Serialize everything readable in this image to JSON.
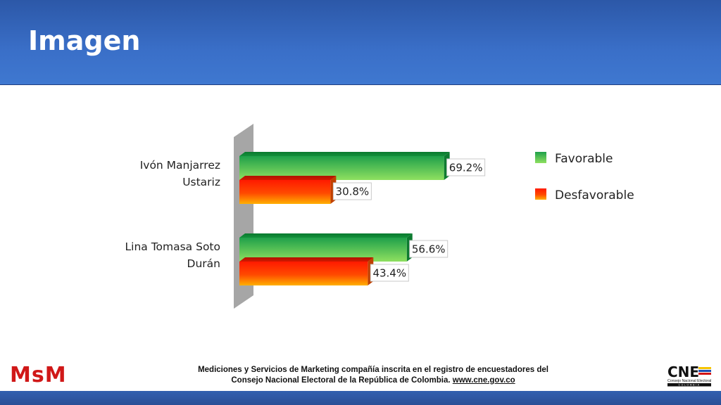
{
  "header": {
    "title": "Imagen"
  },
  "chart_data": {
    "type": "bar",
    "orientation": "horizontal",
    "categories": [
      "Ivón Manjarrez Ustariz",
      "Lina Tomasa Soto Durán"
    ],
    "category_lines": [
      [
        "Ivón Manjarrez",
        "Ustariz"
      ],
      [
        "Lina Tomasa Soto",
        "Durán"
      ]
    ],
    "series": [
      {
        "name": "Favorable",
        "values": [
          69.2,
          56.6
        ],
        "labels": [
          "69.2%",
          "56.6%"
        ],
        "color": "#4cc24c"
      },
      {
        "name": "Desfavorable",
        "values": [
          30.8,
          43.4
        ],
        "labels": [
          "30.8%",
          "43.4%"
        ],
        "color": "#ff2a00"
      }
    ],
    "xlim": [
      0,
      100
    ],
    "legend": "right",
    "grid": false
  },
  "footer": {
    "logo_left": "MsM",
    "line1": "Mediciones y Servicios de Marketing compañía inscrita en el registro de encuestadores del",
    "line2": "Consejo Nacional Electoral de la República de Colombia.",
    "link": "www.cne.gov.co",
    "logo_right": "CNE",
    "logo_right_sub": "Consejo Nacional Electoral",
    "logo_right_country": "COLOMBIA"
  }
}
